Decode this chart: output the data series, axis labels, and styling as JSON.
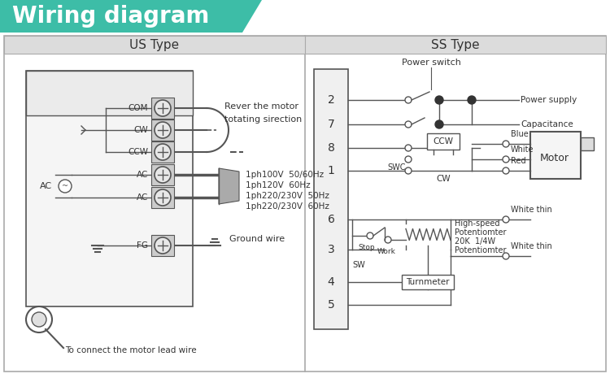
{
  "title": "Wiring diagram",
  "title_bg": "#3dbda7",
  "bg_color": "#ffffff",
  "header_gray": "#dcdcdc",
  "border_gray": "#aaaaaa",
  "line_color": "#555555",
  "text_color": "#333333",
  "left_title": "US Type",
  "right_title": "SS Type",
  "us_terminals": [
    "COM",
    "CW",
    "CCW",
    "AC",
    "AC",
    "FG"
  ],
  "us_voltages": [
    "1ph100V  50/60Hz",
    "1ph120V  60Hz",
    "1ph220/230V  50Hz",
    "1ph220/230V  60Hz"
  ],
  "us_note_1": "Rever the motor",
  "us_note_2": "totating sirection",
  "us_ground": "Ground wire",
  "us_lead": "To connect the motor lead wire",
  "ss_nums": [
    "2",
    "7",
    "8",
    "1",
    "6",
    "3",
    "4",
    "5"
  ],
  "ss_power_switch": "Power switch",
  "ss_power_supply": "Power supply",
  "ss_capacitance": "Capacitance",
  "ss_ccw": "CCW",
  "ss_cw": "CW",
  "ss_swc": "SWC",
  "ss_blue": "Blue",
  "ss_white": "White",
  "ss_red": "Red",
  "ss_white_thin1": "White thin",
  "ss_white_thin2": "White thin",
  "ss_stop": "Stop",
  "ss_work": "Work",
  "ss_sw": "SW",
  "ss_pot_line1": "High-speed",
  "ss_pot_line2": "Potentiomter",
  "ss_pot_line3": "20K  1/4W",
  "ss_pot_line4": "Potentiomter",
  "ss_turn": "Turnmeter",
  "ss_motor": "Motor"
}
